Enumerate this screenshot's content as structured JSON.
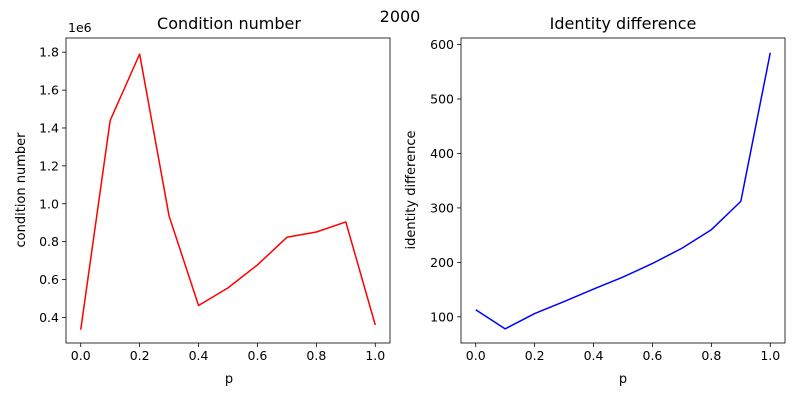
{
  "suptitle": "2000",
  "chart_data": [
    {
      "type": "line",
      "title": "Condition number",
      "xlabel": "p",
      "ylabel": "condition number",
      "offset_label": "1e6",
      "xlim": [
        -0.05,
        1.05
      ],
      "ylim": [
        0.265,
        1.875
      ],
      "xticks": [
        0.0,
        0.2,
        0.4,
        0.6,
        0.8,
        1.0
      ],
      "xtick_labels": [
        "0.0",
        "0.2",
        "0.4",
        "0.6",
        "0.8",
        "1.0"
      ],
      "yticks": [
        0.4,
        0.6,
        0.8,
        1.0,
        1.2,
        1.4,
        1.6,
        1.8
      ],
      "ytick_labels": [
        "0.4",
        "0.6",
        "0.8",
        "1.0",
        "1.2",
        "1.4",
        "1.6",
        "1.8"
      ],
      "grid": false,
      "series": [
        {
          "color": "#ff0000",
          "x": [
            0.0,
            0.1,
            0.2,
            0.3,
            0.4,
            0.5,
            0.6,
            0.7,
            0.8,
            0.9,
            1.0
          ],
          "y": [
            0.335,
            1.44,
            1.79,
            0.935,
            0.463,
            0.556,
            0.677,
            0.823,
            0.851,
            0.904,
            0.36
          ]
        }
      ]
    },
    {
      "type": "line",
      "title": "Identity difference",
      "xlabel": "p",
      "ylabel": "identity difference",
      "xlim": [
        -0.05,
        1.05
      ],
      "ylim": [
        52,
        612
      ],
      "xticks": [
        0.0,
        0.2,
        0.4,
        0.6,
        0.8,
        1.0
      ],
      "xtick_labels": [
        "0.0",
        "0.2",
        "0.4",
        "0.6",
        "0.8",
        "1.0"
      ],
      "yticks": [
        100,
        200,
        300,
        400,
        500,
        600
      ],
      "ytick_labels": [
        "100",
        "200",
        "300",
        "400",
        "500",
        "600"
      ],
      "grid": false,
      "series": [
        {
          "color": "#0000ff",
          "x": [
            0.0,
            0.1,
            0.2,
            0.3,
            0.4,
            0.5,
            0.6,
            0.7,
            0.8,
            0.9,
            1.0
          ],
          "y": [
            113,
            78,
            106,
            128,
            151,
            173,
            198,
            226,
            260,
            312,
            585
          ]
        }
      ]
    }
  ]
}
